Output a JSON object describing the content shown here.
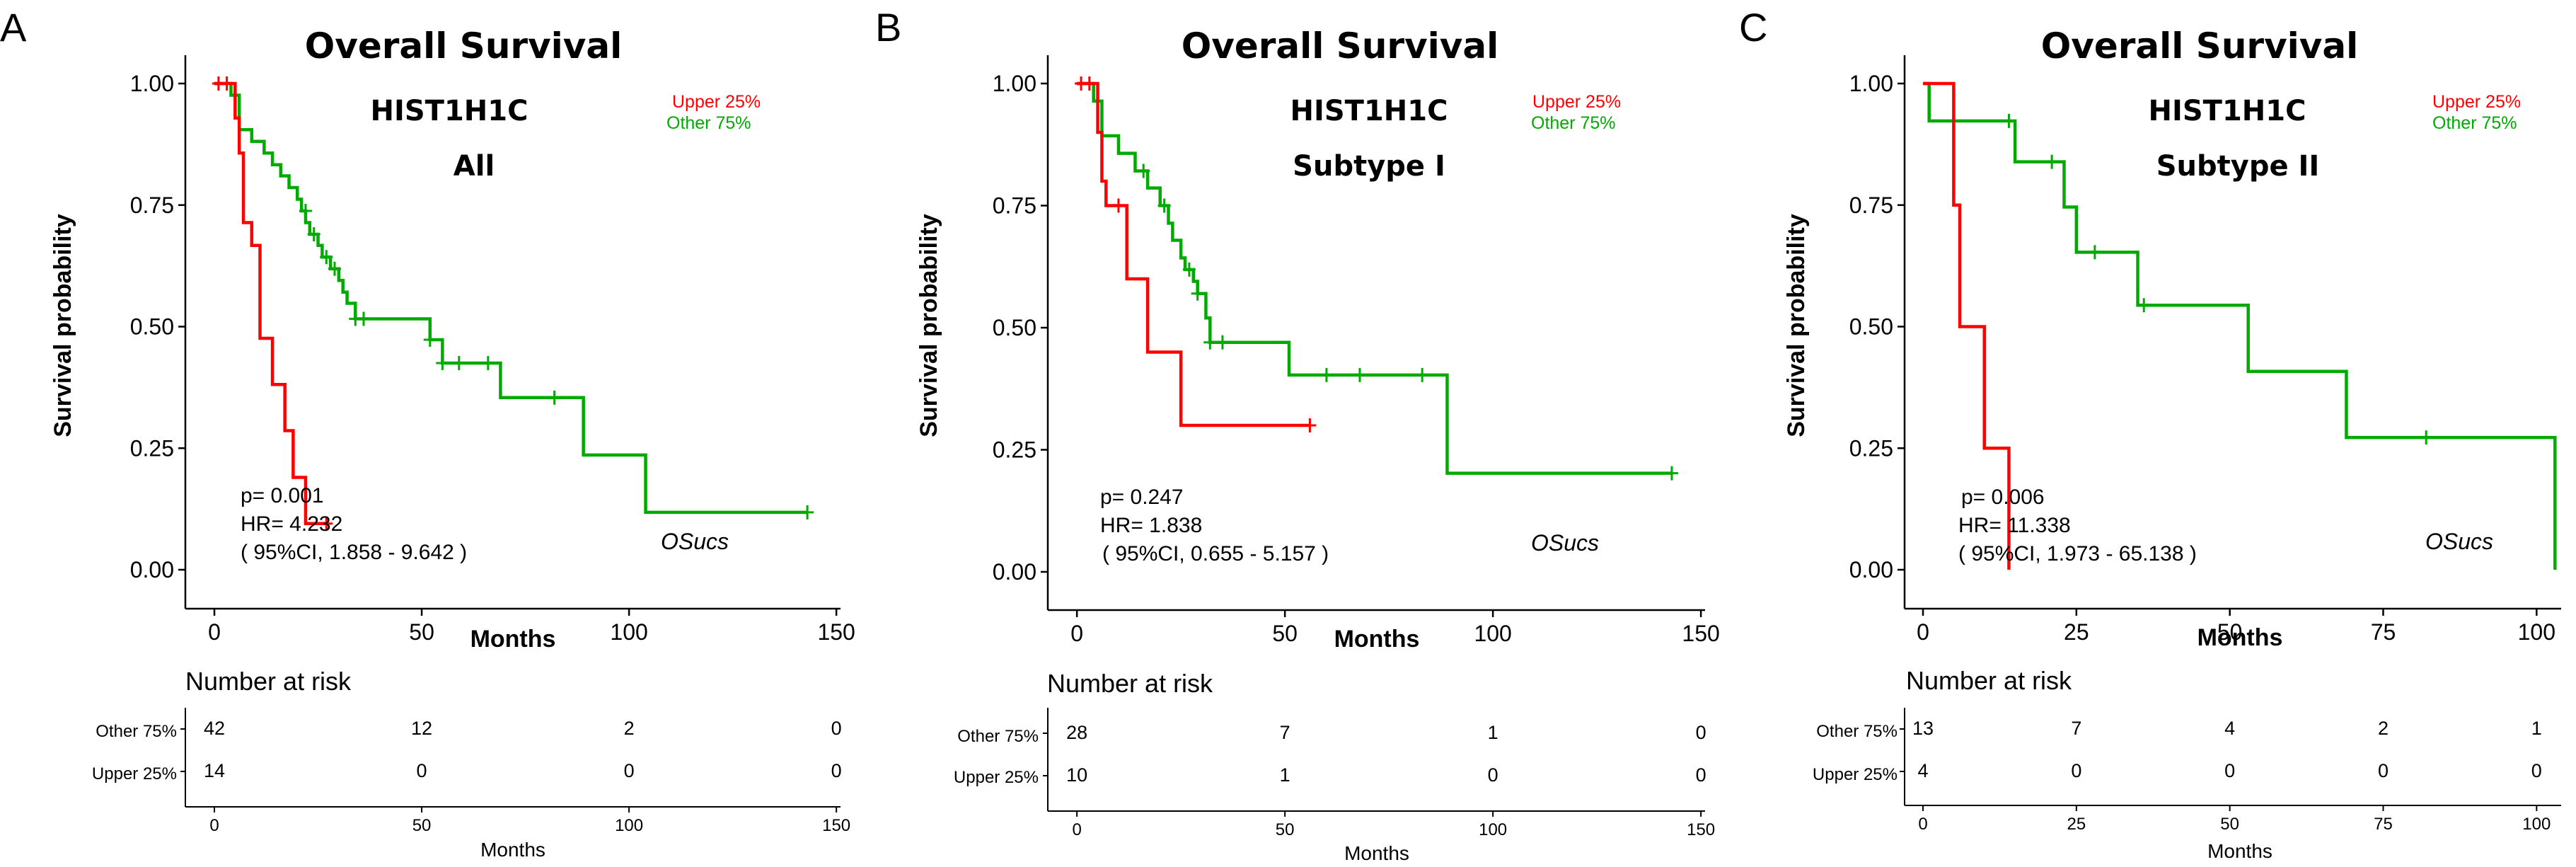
{
  "panels": [
    {
      "letter": "A",
      "title": "Overall Survival",
      "gene": "HIST1H1C",
      "subset": "All",
      "legend": [
        {
          "label": "Upper 25%",
          "color": "#ff0000"
        },
        {
          "label": "Other  75%",
          "color": "#00aa00"
        }
      ],
      "p_text": "p= 0.001",
      "hr_text": "HR= 4.232",
      "ci_text": "( 95%CI, 1.858 - 9.642 )",
      "endpoint": "OSucs",
      "xlabel": "Months",
      "ylabel": "Survival probability",
      "risk_title": "Number at risk",
      "risk_rows": [
        {
          "label": "Other  75%",
          "values": [
            "42",
            "12",
            "2",
            "0"
          ]
        },
        {
          "label": "Upper 25%",
          "values": [
            "14",
            "0",
            "0",
            "0"
          ]
        }
      ],
      "risk_xlabel": "Months"
    },
    {
      "letter": "B",
      "title": "Overall Survival",
      "gene": "HIST1H1C",
      "subset": "Subtype I",
      "legend": [
        {
          "label": "Upper 25%",
          "color": "#ff0000"
        },
        {
          "label": "Other  75%",
          "color": "#00aa00"
        }
      ],
      "p_text": "p= 0.247",
      "hr_text": "HR= 1.838",
      "ci_text": "( 95%CI, 0.655 - 5.157 )",
      "endpoint": "OSucs",
      "xlabel": "Months",
      "ylabel": "Survival probability",
      "risk_title": "Number at risk",
      "risk_rows": [
        {
          "label": "Other  75%",
          "values": [
            "28",
            "7",
            "1",
            "0"
          ]
        },
        {
          "label": "Upper 25%",
          "values": [
            "10",
            "1",
            "0",
            "0"
          ]
        }
      ],
      "risk_xlabel": "Months"
    },
    {
      "letter": "C",
      "title": "Overall Survival",
      "gene": "HIST1H1C",
      "subset": "Subtype II",
      "legend": [
        {
          "label": "Upper 25%",
          "color": "#ff0000"
        },
        {
          "label": "Other  75%",
          "color": "#00aa00"
        }
      ],
      "p_text": "p= 0.006",
      "hr_text": "HR= 11.338",
      "ci_text": "( 95%CI, 1.973 - 65.138 )",
      "endpoint": "OSucs",
      "xlabel": "Months",
      "ylabel": "Survival probability",
      "risk_title": "Number at risk",
      "risk_rows": [
        {
          "label": "Other  75%",
          "values": [
            "13",
            "7",
            "4",
            "2",
            "1"
          ]
        },
        {
          "label": "Upper 25%",
          "values": [
            "4",
            "0",
            "0",
            "0",
            "0"
          ]
        }
      ],
      "risk_xlabel": "Months"
    }
  ],
  "chart_data": [
    {
      "type": "line",
      "title": "Overall Survival",
      "xlabel": "Months",
      "ylabel": "Survival probability",
      "xlim": [
        -7,
        151
      ],
      "ylim": [
        0,
        1
      ],
      "xticks": [
        0,
        50,
        100,
        150
      ],
      "yticks": [
        0.0,
        0.25,
        0.5,
        0.75,
        1.0
      ],
      "series": [
        {
          "name": "Other  75%",
          "color": "#00aa00",
          "steps": [
            [
              0,
              1.0
            ],
            [
              4,
              0.976
            ],
            [
              6,
              0.905
            ],
            [
              9,
              0.881
            ],
            [
              12,
              0.857
            ],
            [
              14,
              0.833
            ],
            [
              16,
              0.81
            ],
            [
              18,
              0.786
            ],
            [
              20,
              0.762
            ],
            [
              21,
              0.738
            ],
            [
              22,
              0.714
            ],
            [
              23,
              0.69
            ],
            [
              25,
              0.667
            ],
            [
              26,
              0.643
            ],
            [
              28,
              0.619
            ],
            [
              30,
              0.595
            ],
            [
              31,
              0.571
            ],
            [
              32,
              0.548
            ],
            [
              34,
              0.516
            ],
            [
              52,
              0.473
            ],
            [
              55,
              0.425
            ],
            [
              69,
              0.354
            ],
            [
              89,
              0.236
            ],
            [
              104,
              0.118
            ],
            [
              143,
              0.118
            ]
          ],
          "censored": [
            [
              22,
              0.738
            ],
            [
              24,
              0.69
            ],
            [
              27,
              0.643
            ],
            [
              29,
              0.619
            ],
            [
              34,
              0.516
            ],
            [
              36,
              0.516
            ],
            [
              52,
              0.473
            ],
            [
              55,
              0.425
            ],
            [
              59,
              0.425
            ],
            [
              66,
              0.425
            ],
            [
              82,
              0.354
            ],
            [
              143,
              0.118
            ]
          ]
        },
        {
          "name": "Upper 25%",
          "color": "#ff0000",
          "steps": [
            [
              0,
              1.0
            ],
            [
              5,
              0.929
            ],
            [
              6,
              0.857
            ],
            [
              7,
              0.714
            ],
            [
              9,
              0.667
            ],
            [
              11,
              0.476
            ],
            [
              13,
              0.476
            ],
            [
              14,
              0.381
            ],
            [
              17,
              0.286
            ],
            [
              19,
              0.19
            ],
            [
              22,
              0.095
            ],
            [
              27,
              0.095
            ]
          ],
          "censored": [
            [
              1,
              1.0
            ],
            [
              3,
              1.0
            ],
            [
              27,
              0.095
            ]
          ]
        }
      ]
    },
    {
      "type": "line",
      "title": "Overall Survival",
      "xlabel": "Months",
      "ylabel": "Survival probability",
      "xlim": [
        -7,
        151
      ],
      "ylim": [
        0,
        1
      ],
      "xticks": [
        0,
        50,
        100,
        150
      ],
      "yticks": [
        0.0,
        0.25,
        0.5,
        0.75,
        1.0
      ],
      "series": [
        {
          "name": "Other  75%",
          "color": "#00aa00",
          "steps": [
            [
              0,
              1.0
            ],
            [
              4,
              0.964
            ],
            [
              6,
              0.893
            ],
            [
              10,
              0.857
            ],
            [
              14,
              0.821
            ],
            [
              17,
              0.786
            ],
            [
              20,
              0.75
            ],
            [
              22,
              0.714
            ],
            [
              23,
              0.679
            ],
            [
              25,
              0.643
            ],
            [
              26,
              0.619
            ],
            [
              28,
              0.595
            ],
            [
              29,
              0.57
            ],
            [
              31,
              0.52
            ],
            [
              32,
              0.47
            ],
            [
              49,
              0.47
            ],
            [
              51,
              0.403
            ],
            [
              89,
              0.202
            ],
            [
              143,
              0.202
            ]
          ],
          "censored": [
            [
              16,
              0.821
            ],
            [
              21,
              0.75
            ],
            [
              27,
              0.619
            ],
            [
              29,
              0.57
            ],
            [
              32,
              0.47
            ],
            [
              35,
              0.47
            ],
            [
              60,
              0.403
            ],
            [
              68,
              0.403
            ],
            [
              83,
              0.403
            ],
            [
              143,
              0.202
            ]
          ]
        },
        {
          "name": "Upper 25%",
          "color": "#ff0000",
          "steps": [
            [
              0,
              1.0
            ],
            [
              5,
              0.9
            ],
            [
              6,
              0.8
            ],
            [
              7,
              0.75
            ],
            [
              12,
              0.6
            ],
            [
              17,
              0.45
            ],
            [
              25,
              0.3
            ],
            [
              56,
              0.3
            ]
          ],
          "censored": [
            [
              1,
              1.0
            ],
            [
              3,
              1.0
            ],
            [
              10,
              0.75
            ],
            [
              56,
              0.3
            ]
          ]
        }
      ]
    },
    {
      "type": "line",
      "title": "Overall Survival",
      "xlabel": "Months",
      "ylabel": "Survival probability",
      "xlim": [
        -3,
        104
      ],
      "ylim": [
        0,
        1
      ],
      "xticks": [
        0,
        25,
        50,
        75,
        100
      ],
      "yticks": [
        0.0,
        0.25,
        0.5,
        0.75,
        1.0
      ],
      "series": [
        {
          "name": "Other  75%",
          "color": "#00aa00",
          "steps": [
            [
              0,
              1.0
            ],
            [
              1,
              0.923
            ],
            [
              14,
              0.923
            ],
            [
              15,
              0.839
            ],
            [
              22,
              0.839
            ],
            [
              23,
              0.746
            ],
            [
              25,
              0.653
            ],
            [
              35,
              0.544
            ],
            [
              52,
              0.544
            ],
            [
              53,
              0.408
            ],
            [
              68,
              0.408
            ],
            [
              69,
              0.272
            ],
            [
              103,
              0.0
            ]
          ],
          "censored": [
            [
              14,
              0.923
            ],
            [
              21,
              0.839
            ],
            [
              28,
              0.653
            ],
            [
              36,
              0.544
            ],
            [
              82,
              0.272
            ]
          ]
        },
        {
          "name": "Upper 25%",
          "color": "#ff0000",
          "steps": [
            [
              0,
              1.0
            ],
            [
              4,
              1.0
            ],
            [
              5,
              0.75
            ],
            [
              6,
              0.5
            ],
            [
              10,
              0.25
            ],
            [
              14,
              0.0
            ]
          ],
          "censored": []
        }
      ]
    }
  ]
}
